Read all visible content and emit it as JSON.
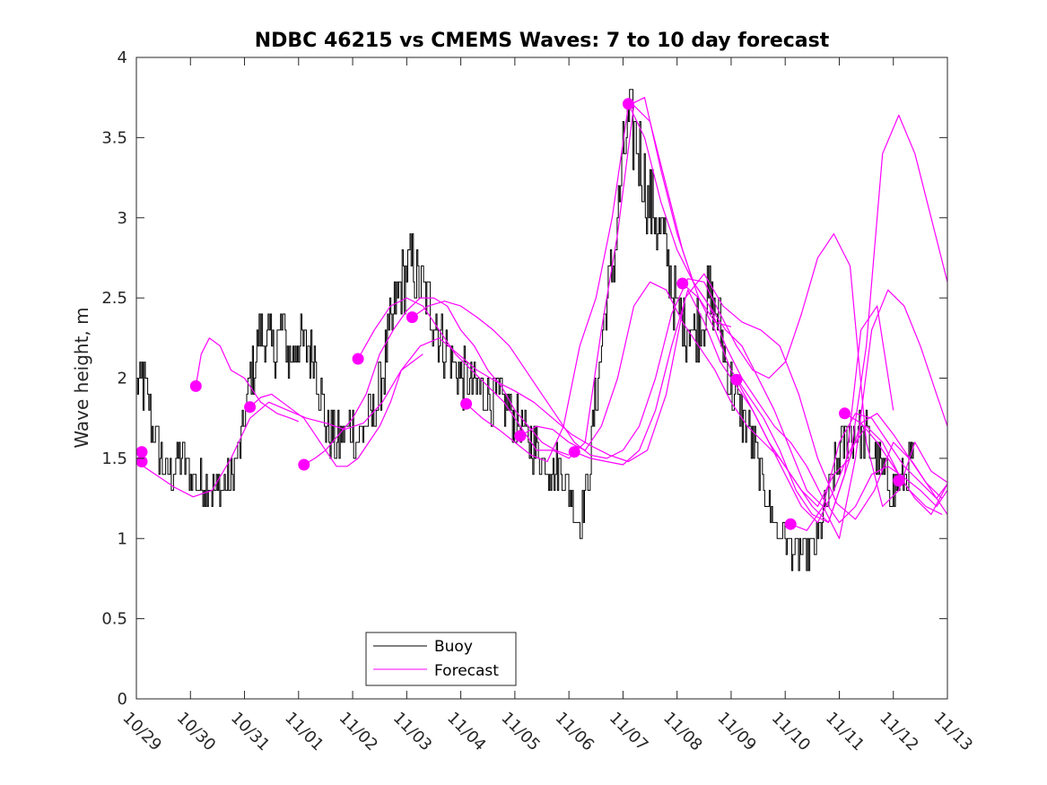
{
  "chart_data": {
    "type": "line",
    "title": "NDBC 46215 vs CMEMS Waves: 7 to 10 day forecast",
    "xlabel": "",
    "ylabel": "Wave height, m",
    "xlim": [
      0,
      15
    ],
    "ylim": [
      0,
      4
    ],
    "grid": false,
    "x_tick_labels": [
      "10/29",
      "10/30",
      "10/31",
      "11/01",
      "11/02",
      "11/03",
      "11/04",
      "11/05",
      "11/06",
      "11/07",
      "11/08",
      "11/09",
      "11/10",
      "11/11",
      "11/12",
      "11/13"
    ],
    "y_ticks": [
      0,
      0.5,
      1,
      1.5,
      2,
      2.5,
      3,
      3.5,
      4
    ],
    "y_tick_labels": [
      "0",
      "0.5",
      "1",
      "1.5",
      "2",
      "2.5",
      "3",
      "3.5",
      "4"
    ],
    "colors": {
      "buoy": "#000000",
      "forecast": "#ff00ff"
    },
    "legend": {
      "placement": "bottom-left",
      "entries": [
        "Buoy",
        "Forecast"
      ]
    },
    "buoy_keypoints": {
      "x": [
        0,
        0.1,
        0.3,
        0.55,
        0.8,
        1.0,
        1.2,
        1.4,
        1.6,
        1.75,
        1.9,
        2.1,
        2.3,
        2.5,
        2.7,
        2.85,
        2.95,
        3.1,
        3.3,
        3.5,
        3.7,
        3.85,
        3.95,
        4.1,
        4.25,
        4.4,
        4.55,
        4.7,
        4.9,
        5.1,
        5.3,
        5.5,
        5.7,
        5.9,
        6.1,
        6.3,
        6.5,
        6.7,
        6.9,
        7.1,
        7.3,
        7.5,
        7.7,
        7.9,
        8.0,
        8.2,
        8.35,
        8.5,
        8.6,
        8.7,
        8.75,
        8.85,
        8.95,
        9.05,
        9.15,
        9.3,
        9.45,
        9.6,
        9.8,
        10.0,
        10.2,
        10.45,
        10.6,
        10.8,
        10.95,
        11.1,
        11.25,
        11.4,
        11.55,
        11.7,
        11.85,
        12.0,
        12.1,
        12.25,
        12.4,
        12.6,
        12.75,
        12.9,
        13.05,
        13.2,
        13.4,
        13.55,
        13.7,
        13.85,
        14.0,
        14.15,
        14.3,
        14.37
      ],
      "y": [
        1.9,
        2.0,
        1.7,
        1.4,
        1.5,
        1.4,
        1.35,
        1.3,
        1.3,
        1.35,
        1.55,
        2.0,
        2.3,
        2.2,
        2.3,
        2.1,
        2.25,
        2.2,
        2.15,
        1.7,
        1.6,
        1.65,
        1.7,
        1.6,
        1.7,
        1.8,
        2.0,
        2.3,
        2.6,
        2.7,
        2.55,
        2.4,
        2.2,
        2.05,
        2.0,
        1.95,
        1.9,
        1.85,
        1.8,
        1.7,
        1.6,
        1.5,
        1.45,
        1.4,
        1.3,
        1.1,
        1.35,
        1.9,
        2.2,
        2.5,
        2.6,
        2.8,
        3.2,
        3.5,
        3.6,
        3.4,
        3.1,
        3.0,
        2.8,
        2.4,
        2.3,
        2.35,
        2.5,
        2.3,
        2.0,
        1.85,
        1.75,
        1.6,
        1.4,
        1.2,
        1.05,
        1.0,
        0.95,
        0.92,
        0.92,
        1.0,
        1.2,
        1.4,
        1.55,
        1.65,
        1.65,
        1.6,
        1.5,
        1.35,
        1.3,
        1.35,
        1.45,
        1.5
      ]
    },
    "forecast_series": [
      {
        "name": "Forecast",
        "x": [
          0,
          0.35,
          0.7,
          1.05,
          1.4,
          1.75,
          2.1,
          2.45,
          2.8,
          3.15,
          3.5,
          3.85,
          4.2,
          4.55,
          4.9,
          5.25,
          5.6,
          5.95,
          6.3,
          6.65,
          7.0,
          7.35,
          7.7,
          8.05,
          8.4,
          8.75,
          9.1,
          9.45,
          9.8,
          10.15,
          10.5,
          10.85,
          11.2,
          11.55,
          11.9,
          12.25,
          12.6,
          12.95,
          13.3,
          13.65,
          14.0,
          14.35,
          14.7,
          15.0
        ],
        "y": [
          1.48,
          1.4,
          1.32,
          1.26,
          1.3,
          1.5,
          1.75,
          1.85,
          1.8,
          1.75,
          1.72,
          1.68,
          1.72,
          1.85,
          2.05,
          2.2,
          2.25,
          2.15,
          2.05,
          1.98,
          1.92,
          1.85,
          1.75,
          1.65,
          1.58,
          1.52,
          1.48,
          1.55,
          1.9,
          2.5,
          2.65,
          2.45,
          2.35,
          2.3,
          2.2,
          1.9,
          1.5,
          1.22,
          1.12,
          1.3,
          1.6,
          1.48,
          1.3,
          1.15
        ]
      },
      {
        "name": "Forecast",
        "x": [
          1.1,
          1.2,
          1.35,
          1.55,
          1.75,
          2.0,
          2.3,
          2.6,
          2.85,
          3.0
        ],
        "y": [
          1.95,
          2.15,
          2.25,
          2.2,
          2.05,
          2.0,
          1.85,
          1.78,
          1.75,
          1.73
        ]
      },
      {
        "name": "Forecast",
        "x": [
          2.1,
          2.3,
          2.5,
          2.7,
          2.9,
          3.1,
          3.3,
          3.5,
          3.7,
          3.9,
          4.1,
          4.3,
          4.5,
          4.7,
          4.9,
          5.1,
          5.3
        ],
        "y": [
          1.82,
          1.88,
          1.9,
          1.85,
          1.8,
          1.75,
          1.65,
          1.55,
          1.45,
          1.45,
          1.5,
          1.6,
          1.7,
          1.85,
          2.05,
          2.1,
          2.15
        ]
      },
      {
        "name": "Forecast",
        "x": [
          3.1,
          3.3,
          3.5,
          3.75,
          4.0,
          4.25,
          4.5,
          4.75,
          5.0,
          5.25,
          5.5,
          5.75,
          6.0,
          6.25,
          6.5,
          6.75,
          7.0,
          7.25,
          7.5,
          7.75,
          8.0
        ],
        "y": [
          1.46,
          1.5,
          1.55,
          1.65,
          1.75,
          1.9,
          2.15,
          2.3,
          2.42,
          2.5,
          2.5,
          2.45,
          2.3,
          2.2,
          2.05,
          1.95,
          1.8,
          1.7,
          1.6,
          1.55,
          1.52
        ]
      },
      {
        "name": "Forecast",
        "x": [
          4.1,
          4.4,
          4.7,
          5.0,
          5.3,
          5.6,
          5.9,
          6.2,
          6.5,
          6.8,
          7.1,
          7.4,
          7.7,
          8.0,
          8.3,
          8.6,
          8.9,
          9.2,
          9.5,
          9.8,
          10.1,
          10.4,
          10.7,
          11.0
        ],
        "y": [
          2.12,
          2.3,
          2.45,
          2.5,
          2.45,
          2.3,
          2.15,
          2.05,
          1.95,
          1.85,
          1.7,
          1.55,
          1.55,
          1.5,
          1.6,
          2.3,
          2.9,
          3.7,
          3.6,
          3.2,
          2.8,
          2.5,
          2.35,
          2.32
        ]
      },
      {
        "name": "Forecast",
        "x": [
          5.1,
          5.4,
          5.7,
          6.0,
          6.3,
          6.6,
          6.9,
          7.2,
          7.5,
          7.8,
          8.1,
          8.4,
          8.7,
          9.0,
          9.3,
          9.6,
          9.9,
          10.2,
          10.5,
          10.8,
          11.1,
          11.4,
          11.7,
          12.0,
          12.3,
          12.6,
          12.9,
          13.2,
          13.5,
          13.8,
          14.1,
          14.4,
          14.7,
          15.0
        ],
        "y": [
          2.38,
          2.45,
          2.48,
          2.45,
          2.38,
          2.3,
          2.2,
          2.05,
          1.9,
          1.75,
          1.6,
          1.52,
          1.5,
          1.55,
          1.7,
          2.0,
          2.4,
          2.62,
          2.6,
          2.4,
          2.2,
          2.05,
          2.0,
          2.1,
          2.4,
          2.75,
          2.9,
          2.7,
          1.6,
          1.2,
          1.3,
          1.6,
          1.42,
          1.35
        ]
      },
      {
        "name": "Forecast",
        "x": [
          6.1,
          6.4,
          6.7,
          7.0,
          7.3,
          7.6,
          7.9,
          8.2,
          8.5,
          8.8,
          9.1,
          9.4,
          9.7,
          10.0,
          10.3,
          10.6,
          10.9,
          11.2,
          11.5,
          11.8,
          12.1,
          12.4,
          12.7,
          13.0,
          13.3,
          13.6,
          13.9,
          14.2,
          14.5,
          14.8,
          15.0
        ],
        "y": [
          1.84,
          1.75,
          1.68,
          1.6,
          1.52,
          1.48,
          1.7,
          2.2,
          2.5,
          3.0,
          3.7,
          3.75,
          3.3,
          2.9,
          2.6,
          2.45,
          2.3,
          2.2,
          2.0,
          1.8,
          1.55,
          1.3,
          1.2,
          1.0,
          1.5,
          2.3,
          2.55,
          2.45,
          2.2,
          1.9,
          1.7
        ]
      },
      {
        "name": "Forecast",
        "x": [
          7.1,
          7.4,
          7.7,
          8.0,
          8.3,
          8.6,
          8.9,
          9.2,
          9.5,
          9.8,
          10.1,
          10.4,
          10.7,
          11.0,
          11.3,
          11.6,
          11.9,
          12.2,
          12.5,
          12.8,
          13.1,
          13.4,
          13.7,
          14.0
        ],
        "y": [
          1.64,
          1.7,
          1.68,
          1.6,
          1.55,
          1.7,
          2.0,
          2.45,
          2.6,
          2.55,
          2.35,
          2.2,
          2.05,
          1.85,
          1.7,
          1.6,
          1.5,
          1.35,
          1.2,
          1.1,
          1.4,
          2.3,
          2.45,
          1.8
        ]
      },
      {
        "name": "Forecast",
        "x": [
          8.1,
          8.4,
          8.7,
          9.0,
          9.3,
          9.6,
          9.9,
          10.2,
          10.5,
          10.8,
          11.1,
          11.4,
          11.7,
          12.0,
          12.3,
          12.6,
          12.9,
          13.2,
          13.5,
          13.8,
          14.1,
          14.4,
          14.7,
          15.0
        ],
        "y": [
          1.54,
          1.5,
          1.48,
          1.46,
          1.55,
          1.8,
          2.2,
          2.55,
          2.35,
          2.1,
          1.95,
          1.8,
          1.6,
          1.45,
          1.3,
          1.2,
          1.4,
          1.5,
          2.2,
          3.4,
          3.64,
          3.4,
          3.0,
          2.6
        ]
      },
      {
        "name": "Forecast",
        "x": [
          9.1,
          9.4,
          9.7,
          10.0,
          10.3,
          10.6,
          10.9,
          11.2,
          11.5,
          11.8,
          12.1,
          12.4,
          12.7,
          13.0,
          13.3,
          13.6,
          13.9,
          14.2,
          14.5,
          14.8,
          15.0
        ],
        "y": [
          3.71,
          3.5,
          3.1,
          2.8,
          2.6,
          2.45,
          2.2,
          2.0,
          1.85,
          1.7,
          1.6,
          1.45,
          1.25,
          1.1,
          1.2,
          1.4,
          1.45,
          1.38,
          1.3,
          1.2,
          1.3
        ]
      },
      {
        "name": "Forecast",
        "x": [
          10.1,
          10.4,
          10.7,
          11.0,
          11.3,
          11.6,
          11.9,
          12.2,
          12.5,
          12.8,
          13.1,
          13.4,
          13.7,
          14.0,
          14.3,
          14.6,
          14.9
        ],
        "y": [
          2.59,
          2.5,
          2.3,
          2.05,
          1.9,
          1.75,
          1.55,
          1.3,
          1.15,
          1.1,
          1.4,
          1.72,
          1.78,
          1.65,
          1.5,
          1.35,
          1.25
        ]
      },
      {
        "name": "Forecast",
        "x": [
          11.1,
          11.4,
          11.7,
          12.0,
          12.3,
          12.6,
          12.9,
          13.2,
          13.5,
          13.8,
          14.1,
          14.4,
          14.7,
          15.0
        ],
        "y": [
          1.99,
          1.8,
          1.6,
          1.4,
          1.2,
          1.1,
          1.3,
          1.55,
          1.7,
          1.6,
          1.4,
          1.25,
          1.15,
          1.34
        ]
      },
      {
        "name": "Forecast",
        "x": [
          12.1,
          12.4,
          12.7,
          13.0,
          13.3,
          13.6,
          13.9,
          14.2,
          14.5,
          14.8,
          15.0
        ],
        "y": [
          1.09,
          1.05,
          1.2,
          1.6,
          1.78,
          1.75,
          1.6,
          1.45,
          1.35,
          1.25,
          1.34
        ]
      },
      {
        "name": "Forecast",
        "x": [
          13.1,
          13.4,
          13.7,
          14.0,
          14.3,
          14.6,
          14.9
        ],
        "y": [
          1.78,
          1.72,
          1.6,
          1.45,
          1.3,
          1.2,
          1.15
        ]
      }
    ],
    "forecast_markers": {
      "x": [
        0.1,
        0.1,
        1.1,
        2.1,
        3.1,
        4.1,
        5.1,
        6.1,
        7.1,
        8.1,
        9.1,
        10.1,
        11.1,
        12.1,
        13.1,
        14.1
      ],
      "y": [
        1.54,
        1.48,
        1.95,
        1.82,
        1.46,
        2.12,
        2.38,
        1.84,
        1.64,
        1.54,
        3.71,
        2.59,
        1.99,
        1.09,
        1.78,
        1.36
      ]
    }
  }
}
